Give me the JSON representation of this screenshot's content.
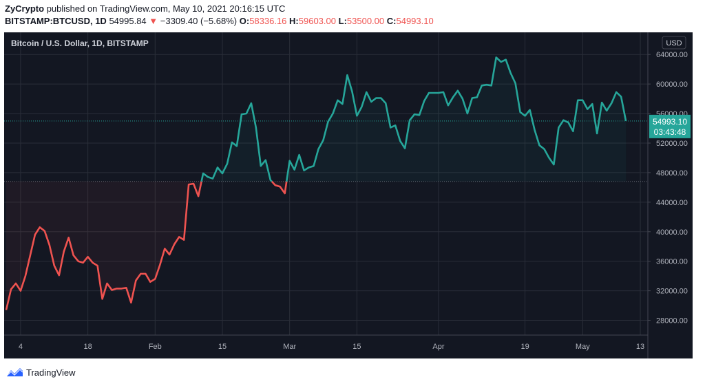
{
  "header": {
    "author": "ZyCrypto",
    "published": "published on TradingView.com, May 10, 2021 20:16:15 UTC",
    "symbol": "BITSTAMP:BTCUSD, 1D",
    "last": "54995.84",
    "change_arrow": "▼",
    "change": "−3309.40 (−5.68%)",
    "o_label": "O:",
    "o_value": "58336.16",
    "h_label": "H:",
    "h_value": "59603.00",
    "l_label": "L:",
    "l_value": "53500.00",
    "c_label": "C:",
    "c_value": "54993.10"
  },
  "footer": {
    "brand": "TradingView",
    "logo_icon": "tradingview-logo-icon"
  },
  "colors": {
    "background": "#131722",
    "grid": "#2a2e39",
    "up": "#26a69a",
    "down": "#ef5350",
    "text": "#b2b5be",
    "price_tag": "#26a69a",
    "header_red": "#ef5350"
  },
  "price_tag": {
    "value": "54993.10",
    "countdown": "03:43:48"
  },
  "chart_data": {
    "type": "line",
    "title": "Bitcoin / U.S. Dollar, 1D, BITSTAMP",
    "currency": "USD",
    "baseline": 46800,
    "ylim": [
      26000,
      67000
    ],
    "yticks": [
      28000,
      32000,
      36000,
      40000,
      44000,
      48000,
      52000,
      56000,
      60000,
      64000
    ],
    "ytick_labels": [
      "28000.00",
      "32000.00",
      "36000.00",
      "40000.00",
      "44000.00",
      "48000.00",
      "52000.00",
      "56000.00",
      "60000.00",
      "64000.00"
    ],
    "x_start": "2021-01-01",
    "x_end": "2021-05-15",
    "x_ticks": [
      {
        "date": "2021-01-04",
        "label": "4"
      },
      {
        "date": "2021-01-18",
        "label": "18"
      },
      {
        "date": "2021-02-01",
        "label": "Feb"
      },
      {
        "date": "2021-02-15",
        "label": "15"
      },
      {
        "date": "2021-03-01",
        "label": "Mar"
      },
      {
        "date": "2021-03-15",
        "label": "15"
      },
      {
        "date": "2021-04-01",
        "label": "Apr"
      },
      {
        "date": "2021-04-19",
        "label": "19"
      },
      {
        "date": "2021-05-01",
        "label": "May"
      },
      {
        "date": "2021-05-13",
        "label": "13"
      }
    ],
    "series": [
      {
        "dates": [
          "2021-01-01",
          "2021-01-02",
          "2021-01-03",
          "2021-01-04",
          "2021-01-05",
          "2021-01-06",
          "2021-01-07",
          "2021-01-08",
          "2021-01-09",
          "2021-01-10",
          "2021-01-11",
          "2021-01-12",
          "2021-01-13",
          "2021-01-14",
          "2021-01-15",
          "2021-01-16",
          "2021-01-17",
          "2021-01-18",
          "2021-01-19",
          "2021-01-20",
          "2021-01-21",
          "2021-01-22",
          "2021-01-23",
          "2021-01-24",
          "2021-01-25",
          "2021-01-26",
          "2021-01-27",
          "2021-01-28",
          "2021-01-29",
          "2021-01-30",
          "2021-01-31",
          "2021-02-01",
          "2021-02-02",
          "2021-02-03",
          "2021-02-04",
          "2021-02-05",
          "2021-02-06",
          "2021-02-07",
          "2021-02-08",
          "2021-02-09",
          "2021-02-10",
          "2021-02-11",
          "2021-02-12",
          "2021-02-13",
          "2021-02-14",
          "2021-02-15",
          "2021-02-16",
          "2021-02-17",
          "2021-02-18",
          "2021-02-19",
          "2021-02-20",
          "2021-02-21",
          "2021-02-22",
          "2021-02-23",
          "2021-02-24",
          "2021-02-25",
          "2021-02-26",
          "2021-02-27",
          "2021-02-28",
          "2021-03-01",
          "2021-03-02",
          "2021-03-03",
          "2021-03-04",
          "2021-03-05",
          "2021-03-06",
          "2021-03-07",
          "2021-03-08",
          "2021-03-09",
          "2021-03-10",
          "2021-03-11",
          "2021-03-12",
          "2021-03-13",
          "2021-03-14",
          "2021-03-15",
          "2021-03-16",
          "2021-03-17",
          "2021-03-18",
          "2021-03-19",
          "2021-03-20",
          "2021-03-21",
          "2021-03-22",
          "2021-03-23",
          "2021-03-24",
          "2021-03-25",
          "2021-03-26",
          "2021-03-27",
          "2021-03-28",
          "2021-03-29",
          "2021-03-30",
          "2021-03-31",
          "2021-04-01",
          "2021-04-02",
          "2021-04-03",
          "2021-04-04",
          "2021-04-05",
          "2021-04-06",
          "2021-04-07",
          "2021-04-08",
          "2021-04-09",
          "2021-04-10",
          "2021-04-11",
          "2021-04-12",
          "2021-04-13",
          "2021-04-14",
          "2021-04-15",
          "2021-04-16",
          "2021-04-17",
          "2021-04-18",
          "2021-04-19",
          "2021-04-20",
          "2021-04-21",
          "2021-04-22",
          "2021-04-23",
          "2021-04-24",
          "2021-04-25",
          "2021-04-26",
          "2021-04-27",
          "2021-04-28",
          "2021-04-29",
          "2021-04-30",
          "2021-05-01",
          "2021-05-02",
          "2021-05-03",
          "2021-05-04",
          "2021-05-05",
          "2021-05-06",
          "2021-05-07",
          "2021-05-08",
          "2021-05-09",
          "2021-05-10"
        ],
        "values": [
          29400,
          32200,
          33000,
          32000,
          34000,
          36800,
          39600,
          40600,
          40100,
          38200,
          35400,
          34100,
          37300,
          39200,
          36800,
          36000,
          35800,
          36600,
          35800,
          35400,
          30900,
          33000,
          32100,
          32300,
          32300,
          32400,
          30400,
          33400,
          34300,
          34300,
          33200,
          33600,
          35500,
          37700,
          36900,
          38300,
          39300,
          38900,
          46400,
          46500,
          44800,
          47900,
          47400,
          47200,
          48700,
          47900,
          49200,
          52100,
          51600,
          55900,
          56000,
          57400,
          54100,
          48900,
          49700,
          47000,
          46300,
          46100,
          45200,
          49600,
          48400,
          50400,
          48300,
          48700,
          48900,
          51200,
          52400,
          54900,
          56000,
          57800,
          57300,
          61200,
          59000,
          55700,
          56900,
          58900,
          57600,
          58100,
          58100,
          57400,
          54100,
          54400,
          52300,
          51300,
          55100,
          55900,
          55800,
          57700,
          58800,
          58800,
          58800,
          58900,
          57100,
          58200,
          59100,
          58000,
          56000,
          58100,
          58200,
          59800,
          59900,
          59800,
          63600,
          63000,
          63300,
          61500,
          60100,
          56200,
          55700,
          56500,
          53800,
          51700,
          51200,
          50000,
          49100,
          54100,
          55100,
          54800,
          53600,
          57800,
          57800,
          56600,
          57300,
          53300,
          57500,
          56400,
          57400,
          58900,
          58300,
          54993
        ]
      }
    ]
  }
}
